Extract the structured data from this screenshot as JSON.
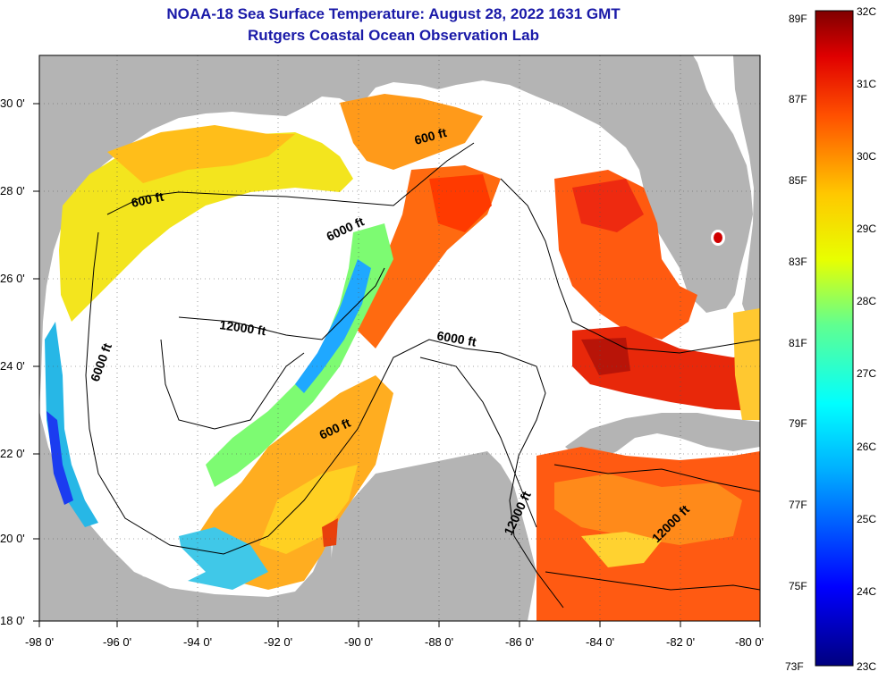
{
  "title": "NOAA-18 Sea Surface Temperature:  August 28, 2022 1631 GMT",
  "subtitle": "Rutgers Coastal Ocean Observation Lab",
  "axes": {
    "lat_ticks": [
      "30 0'",
      "28 0'",
      "26 0'",
      "24 0'",
      "22 0'",
      "20 0'",
      "18 0'"
    ],
    "lon_ticks": [
      "-98 0'",
      "-96 0'",
      "-94 0'",
      "-92 0'",
      "-90 0'",
      "-88 0'",
      "-86 0'",
      "-84 0'",
      "-82 0'",
      "-80 0'"
    ]
  },
  "contour_labels": [
    "600 ft",
    "600 ft",
    "6000 ft",
    "12000 ft",
    "6000 ft",
    "6000 ft",
    "600 ft",
    "12000 ft",
    "12000 ft"
  ],
  "colorbar": {
    "fahrenheit": [
      "89F",
      "87F",
      "85F",
      "83F",
      "81F",
      "79F",
      "77F",
      "75F",
      "73F"
    ],
    "celsius": [
      "32C",
      "31C",
      "30C",
      "29C",
      "28C",
      "27C",
      "26C",
      "25C",
      "24C",
      "23C"
    ]
  },
  "colors": {
    "land": "#b4b4b4",
    "title": "#1a1aa8",
    "cloud": "#ffffff"
  }
}
